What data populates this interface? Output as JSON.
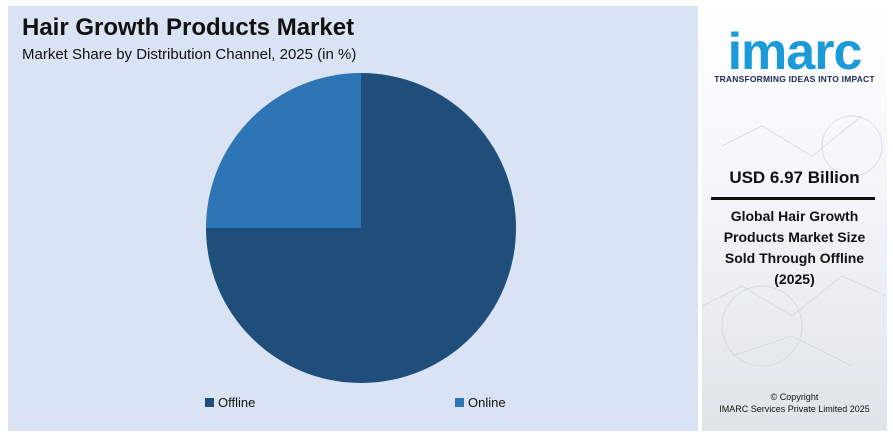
{
  "title": "Hair Growth Products Market",
  "subtitle": "Market Share by Distribution Channel, 2025 (in %)",
  "chart_data": {
    "type": "pie",
    "categories": [
      "Offline",
      "Online"
    ],
    "values": [
      75,
      25
    ],
    "colors": [
      "#1f4e7a",
      "#2e75b6"
    ],
    "legend": "bottom",
    "start_angle": "12 o'clock, clockwise"
  },
  "brand": {
    "logo_text": "imarc",
    "tagline": "TRANSFORMING IDEAS INTO IMPACT",
    "accent": "#1a9ad8"
  },
  "highlight": {
    "value": "USD 6.97 Billion",
    "description_lines": [
      "Global Hair Growth",
      "Products Market Size",
      "Sold Through Offline",
      "(2025)"
    ]
  },
  "copyright": {
    "line1": "© Copyright",
    "line2": "IMARC Services Private Limited 2025"
  }
}
